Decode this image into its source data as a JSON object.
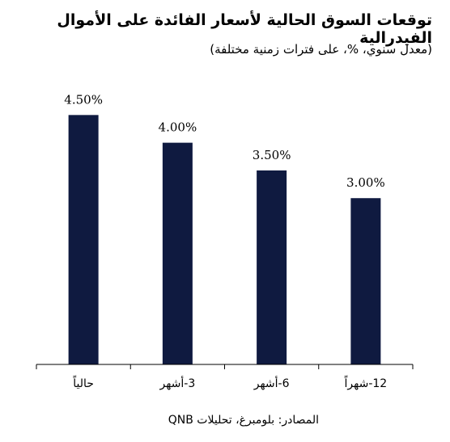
{
  "title": "توقعات السوق الحالية لأسعار الفائدة على الأموال الفيدرالية",
  "subtitle": "(معدل سنوي، %، على فترات زمنية مختلفة)",
  "source": "المصادر: بلومبرغ، تحليلات QNB",
  "colors": {
    "bar": "#0f1a40",
    "axis": "#000000",
    "text": "#000000"
  },
  "chart_data": {
    "type": "bar",
    "title": "توقعات السوق الحالية لأسعار الفائدة على الأموال الفيدرالية",
    "subtitle": "(معدل سنوي، %، على فترات زمنية مختلفة)",
    "categories": [
      "حالياً",
      "3-أشهر",
      "6-أشهر",
      "12-شهراً"
    ],
    "values": [
      4.5,
      4.0,
      3.5,
      3.0
    ],
    "data_labels": [
      "4.50%",
      "4.00%",
      "3.50%",
      "3.00%"
    ],
    "ylim": [
      0,
      5.19
    ],
    "xlabel": "",
    "ylabel": "",
    "grid": false,
    "legend": "none"
  }
}
